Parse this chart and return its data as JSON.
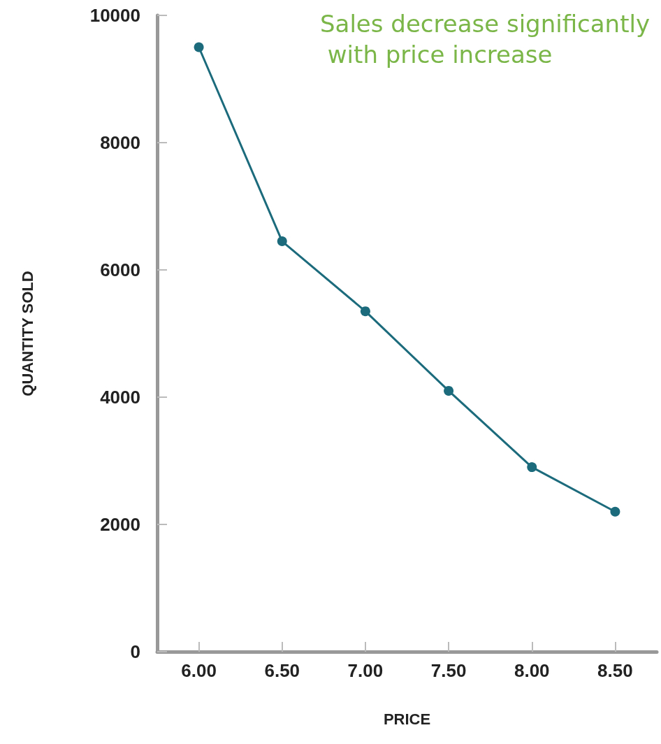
{
  "chart_data": {
    "type": "line",
    "xlabel": "PRICE",
    "ylabel": "QUANTITY SOLD",
    "annotations": [
      "Sales decrease significantly with price increase"
    ],
    "x": [
      6.0,
      6.5,
      7.0,
      7.5,
      8.0,
      8.5
    ],
    "series": [
      {
        "color": "#1b6b7c",
        "values": [
          9500,
          6450,
          5350,
          4100,
          2900,
          2200
        ]
      }
    ],
    "xlim": [
      5.75,
      8.75
    ],
    "xticks": [
      {
        "value": 6,
        "label": "6.00"
      },
      {
        "value": 6.5,
        "label": "6.50"
      },
      {
        "value": 7,
        "label": "7.00"
      },
      {
        "value": 7.5,
        "label": "7.50"
      },
      {
        "value": 8,
        "label": "8.00"
      },
      {
        "value": 8.5,
        "label": "8.50"
      }
    ],
    "ylim": [
      0,
      10000
    ],
    "yticks": [
      0,
      2000,
      4000,
      6000,
      8000,
      10000
    ],
    "grid": false,
    "marker": "circle",
    "line_style": "solid"
  }
}
